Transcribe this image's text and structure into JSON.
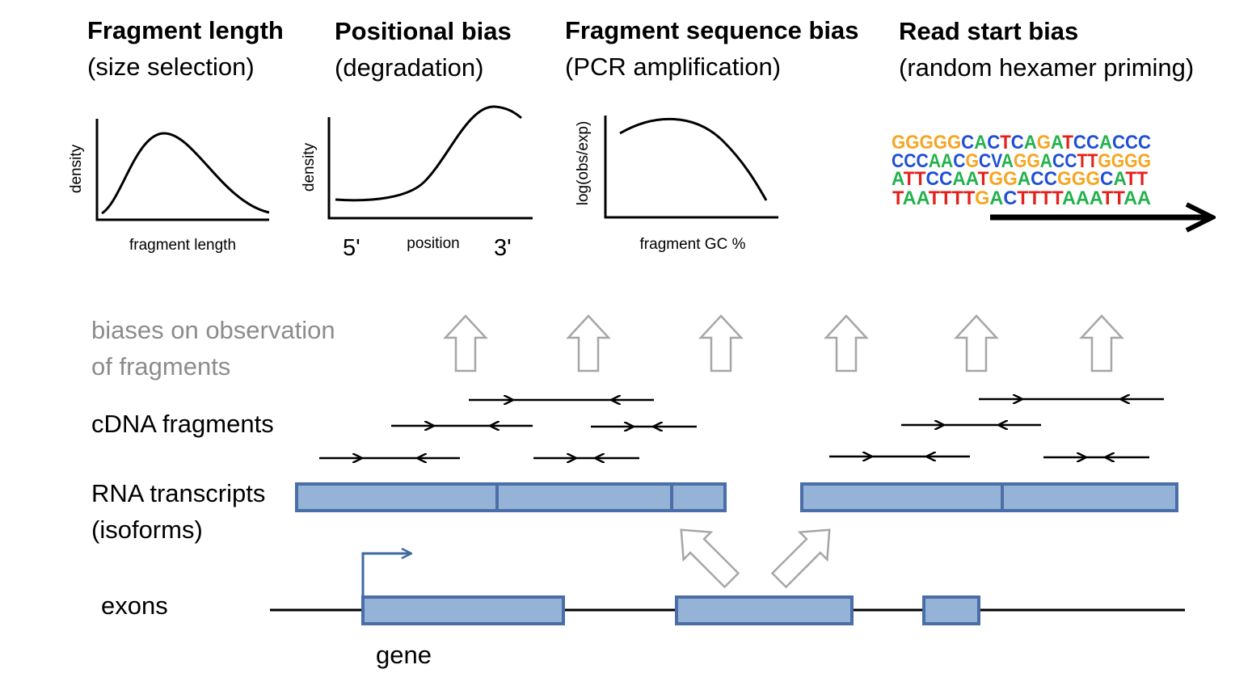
{
  "panels": [
    {
      "title": "Fragment length",
      "subtitle": "(size selection)",
      "ylabel": "density",
      "xlabel": "fragment length"
    },
    {
      "title": "Positional bias",
      "subtitle": "(degradation)",
      "ylabel": "density",
      "xlabel": "position",
      "left_end": "5'",
      "right_end": "3'"
    },
    {
      "title": "Fragment sequence bias",
      "subtitle": "(PCR amplification)",
      "ylabel": "log(obs/exp)",
      "xlabel": "fragment GC %"
    },
    {
      "title": "Read start bias",
      "subtitle": "(random hexamer priming)"
    }
  ],
  "sequence_logo": {
    "rows": [
      "GGGGGCACTCAGATCCACCC",
      "CCCAACGCVAGGACCTTGGGG",
      "ATTCCAATGGACCGGGCATT",
      "TAATTTTGACTTTTAAATTAA"
    ],
    "colors": {
      "A": "#22b14c",
      "C": "#1f4fd6",
      "G": "#f5a623",
      "T": "#e3211c",
      "V": "#1f4fd6"
    }
  },
  "labels": {
    "biases_line1": "biases on observation",
    "biases_line2": "of fragments",
    "cdna": "cDNA fragments",
    "rna_line1": "RNA transcripts",
    "rna_line2": "(isoforms)",
    "exons": "exons",
    "gene": "gene"
  },
  "colors": {
    "exon_fill": "#95b3d7",
    "exon_stroke": "#4a6ea8",
    "gray_text": "#8c8c8c",
    "arrow_outline": "#a6a6a6",
    "tss_arrow": "#3f6aa0"
  }
}
